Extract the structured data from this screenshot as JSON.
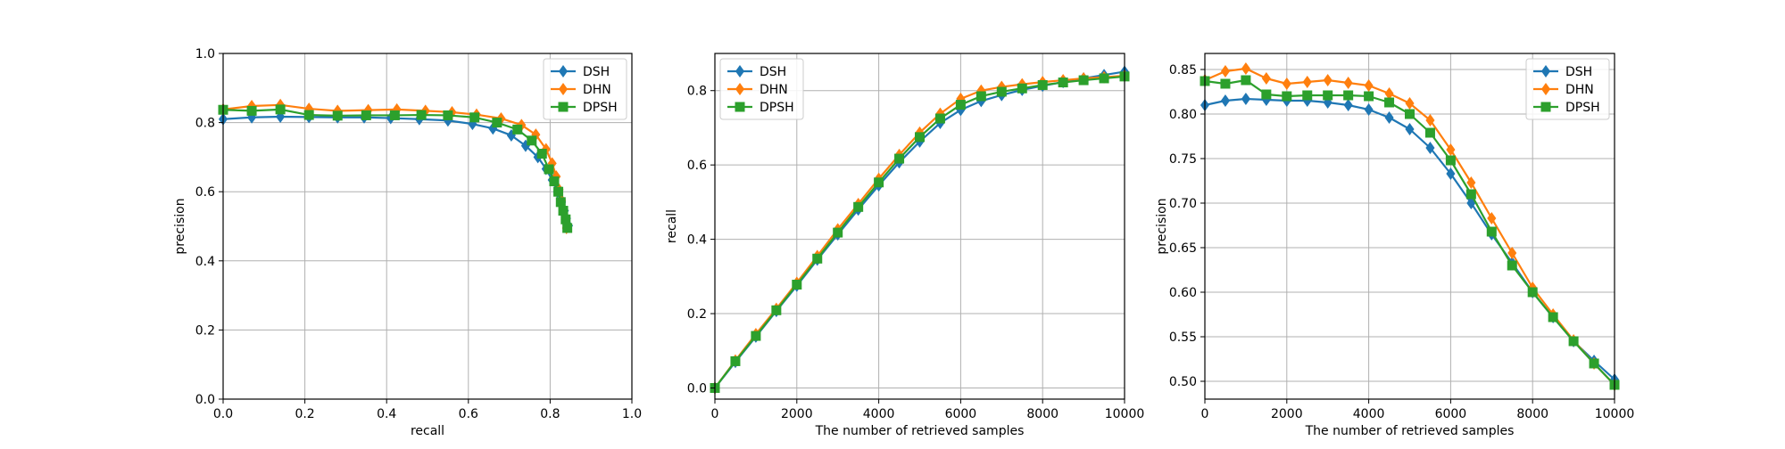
{
  "chart_data": [
    {
      "type": "line",
      "title": "",
      "xlabel": "recall",
      "ylabel": "precision",
      "xlim": [
        0,
        1
      ],
      "ylim": [
        0,
        1
      ],
      "xticks": [
        0.0,
        0.2,
        0.4,
        0.6,
        0.8,
        1.0
      ],
      "yticks": [
        0.0,
        0.2,
        0.4,
        0.6,
        0.8,
        1.0
      ],
      "xtick_labels": [
        "0.0",
        "0.2",
        "0.4",
        "0.6",
        "0.8",
        "1.0"
      ],
      "ytick_labels": [
        "0.0",
        "0.2",
        "0.4",
        "0.6",
        "0.8",
        "1.0"
      ],
      "grid": true,
      "legend": "top-right",
      "series": [
        {
          "name": "DSH",
          "color": "#1f77b4",
          "marker": "diamond",
          "x": [
            0.0,
            0.07,
            0.14,
            0.21,
            0.28,
            0.345,
            0.41,
            0.48,
            0.55,
            0.61,
            0.66,
            0.705,
            0.74,
            0.77,
            0.79,
            0.805,
            0.818,
            0.828,
            0.835,
            0.84,
            0.845
          ],
          "y": [
            0.81,
            0.815,
            0.817,
            0.816,
            0.815,
            0.815,
            0.813,
            0.81,
            0.806,
            0.796,
            0.783,
            0.763,
            0.733,
            0.7,
            0.666,
            0.634,
            0.6,
            0.57,
            0.545,
            0.523,
            0.502
          ]
        },
        {
          "name": "DHN",
          "color": "#ff7f0e",
          "marker": "diamond",
          "x": [
            0.0,
            0.07,
            0.14,
            0.21,
            0.28,
            0.355,
            0.425,
            0.495,
            0.56,
            0.62,
            0.68,
            0.73,
            0.765,
            0.79,
            0.805,
            0.815,
            0.822,
            0.828,
            0.833,
            0.837,
            0.84
          ],
          "y": [
            0.838,
            0.848,
            0.851,
            0.84,
            0.834,
            0.836,
            0.838,
            0.834,
            0.83,
            0.823,
            0.812,
            0.793,
            0.765,
            0.723,
            0.682,
            0.644,
            0.606,
            0.575,
            0.545,
            0.52,
            0.495
          ]
        },
        {
          "name": "DPSH",
          "color": "#2ca02c",
          "marker": "square",
          "x": [
            0.0,
            0.07,
            0.14,
            0.21,
            0.28,
            0.35,
            0.42,
            0.485,
            0.55,
            0.615,
            0.67,
            0.72,
            0.755,
            0.78,
            0.797,
            0.81,
            0.82,
            0.826,
            0.832,
            0.838,
            0.842
          ],
          "y": [
            0.837,
            0.834,
            0.838,
            0.822,
            0.82,
            0.821,
            0.821,
            0.822,
            0.821,
            0.815,
            0.8,
            0.78,
            0.748,
            0.71,
            0.665,
            0.63,
            0.6,
            0.57,
            0.545,
            0.52,
            0.495
          ]
        }
      ]
    },
    {
      "type": "line",
      "title": "",
      "xlabel": "The number of retrieved samples",
      "ylabel": "recall",
      "xlim": [
        0,
        10000
      ],
      "ylim": [
        -0.03,
        0.9
      ],
      "xticks": [
        0,
        2000,
        4000,
        6000,
        8000,
        10000
      ],
      "yticks": [
        0.0,
        0.2,
        0.4,
        0.6,
        0.8
      ],
      "xtick_labels": [
        "0",
        "2000",
        "4000",
        "6000",
        "8000",
        "10000"
      ],
      "ytick_labels": [
        "0.0",
        "0.2",
        "0.4",
        "0.6",
        "0.8"
      ],
      "grid": true,
      "legend": "top-left",
      "series": [
        {
          "name": "DSH",
          "color": "#1f77b4",
          "marker": "diamond",
          "x": [
            0,
            500,
            1000,
            1500,
            2000,
            2500,
            3000,
            3500,
            4000,
            4500,
            5000,
            5500,
            6000,
            6500,
            7000,
            7500,
            8000,
            8500,
            9000,
            9500,
            10000
          ],
          "y": [
            0.0,
            0.07,
            0.138,
            0.207,
            0.275,
            0.345,
            0.413,
            0.48,
            0.545,
            0.607,
            0.663,
            0.713,
            0.748,
            0.772,
            0.788,
            0.802,
            0.813,
            0.823,
            0.833,
            0.842,
            0.851
          ]
        },
        {
          "name": "DHN",
          "color": "#ff7f0e",
          "marker": "diamond",
          "x": [
            0,
            500,
            1000,
            1500,
            2000,
            2500,
            3000,
            3500,
            4000,
            4500,
            5000,
            5500,
            6000,
            6500,
            7000,
            7500,
            8000,
            8500,
            9000,
            9500,
            10000
          ],
          "y": [
            0.0,
            0.074,
            0.145,
            0.213,
            0.283,
            0.355,
            0.427,
            0.495,
            0.563,
            0.627,
            0.687,
            0.738,
            0.778,
            0.8,
            0.81,
            0.817,
            0.823,
            0.828,
            0.833,
            0.836,
            0.84
          ]
        },
        {
          "name": "DPSH",
          "color": "#2ca02c",
          "marker": "square",
          "x": [
            0,
            500,
            1000,
            1500,
            2000,
            2500,
            3000,
            3500,
            4000,
            4500,
            5000,
            5500,
            6000,
            6500,
            7000,
            7500,
            8000,
            8500,
            9000,
            9500,
            10000
          ],
          "y": [
            0.0,
            0.072,
            0.14,
            0.209,
            0.278,
            0.348,
            0.418,
            0.487,
            0.553,
            0.617,
            0.675,
            0.725,
            0.762,
            0.785,
            0.797,
            0.806,
            0.815,
            0.822,
            0.828,
            0.833,
            0.838
          ]
        }
      ]
    },
    {
      "type": "line",
      "title": "",
      "xlabel": "The number of retrieved samples",
      "ylabel": "precision",
      "xlim": [
        0,
        10000
      ],
      "ylim": [
        0.48,
        0.868
      ],
      "xticks": [
        0,
        2000,
        4000,
        6000,
        8000,
        10000
      ],
      "yticks": [
        0.5,
        0.55,
        0.6,
        0.65,
        0.7,
        0.75,
        0.8,
        0.85
      ],
      "xtick_labels": [
        "0",
        "2000",
        "4000",
        "6000",
        "8000",
        "10000"
      ],
      "ytick_labels": [
        "0.50",
        "0.55",
        "0.60",
        "0.65",
        "0.70",
        "0.75",
        "0.80",
        "0.85"
      ],
      "grid": true,
      "legend": "top-right",
      "series": [
        {
          "name": "DSH",
          "color": "#1f77b4",
          "marker": "diamond",
          "x": [
            0,
            500,
            1000,
            1500,
            2000,
            2500,
            3000,
            3500,
            4000,
            4500,
            5000,
            5500,
            6000,
            6500,
            7000,
            7500,
            8000,
            8500,
            9000,
            9500,
            10000
          ],
          "y": [
            0.81,
            0.815,
            0.817,
            0.816,
            0.815,
            0.815,
            0.813,
            0.81,
            0.805,
            0.796,
            0.783,
            0.762,
            0.733,
            0.7,
            0.665,
            0.633,
            0.6,
            0.572,
            0.545,
            0.523,
            0.502
          ]
        },
        {
          "name": "DHN",
          "color": "#ff7f0e",
          "marker": "diamond",
          "x": [
            0,
            500,
            1000,
            1500,
            2000,
            2500,
            3000,
            3500,
            4000,
            4500,
            5000,
            5500,
            6000,
            6500,
            7000,
            7500,
            8000,
            8500,
            9000,
            9500,
            10000
          ],
          "y": [
            0.838,
            0.848,
            0.851,
            0.84,
            0.834,
            0.836,
            0.838,
            0.835,
            0.832,
            0.823,
            0.812,
            0.793,
            0.76,
            0.723,
            0.683,
            0.644,
            0.605,
            0.575,
            0.546,
            0.52,
            0.496
          ]
        },
        {
          "name": "DPSH",
          "color": "#2ca02c",
          "marker": "square",
          "x": [
            0,
            500,
            1000,
            1500,
            2000,
            2500,
            3000,
            3500,
            4000,
            4500,
            5000,
            5500,
            6000,
            6500,
            7000,
            7500,
            8000,
            8500,
            9000,
            9500,
            10000
          ],
          "y": [
            0.837,
            0.834,
            0.838,
            0.822,
            0.82,
            0.821,
            0.821,
            0.821,
            0.82,
            0.813,
            0.8,
            0.779,
            0.748,
            0.71,
            0.668,
            0.63,
            0.6,
            0.572,
            0.545,
            0.52,
            0.496
          ]
        }
      ]
    }
  ]
}
